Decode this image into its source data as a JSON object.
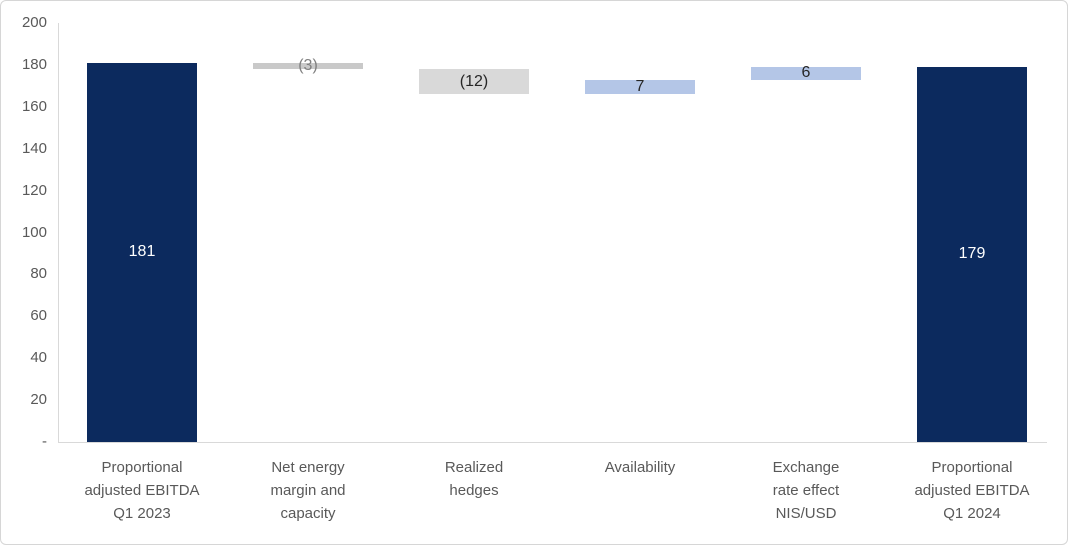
{
  "chart_data": {
    "type": "bar",
    "subtype": "waterfall",
    "title": "",
    "xlabel": "",
    "ylabel": "",
    "grid": false,
    "legend": false,
    "y_axis": {
      "min": 0,
      "max": 200,
      "tick_step": 20,
      "tick_labels": [
        "-",
        "20",
        "40",
        "60",
        "80",
        "100",
        "120",
        "140",
        "160",
        "180",
        "200"
      ]
    },
    "categories": [
      "Proportional adjusted EBITDA Q1 2023",
      "Net energy margin and capacity",
      "Realized hedges",
      "Availability",
      "Exchange rate effect NIS/USD",
      "Proportional adjusted EBITDA Q1 2024"
    ],
    "bars": [
      {
        "label_lines": [
          "Proportional",
          "adjusted EBITDA",
          "Q1 2023"
        ],
        "role": "total",
        "value": 181,
        "span_from": 0,
        "span_to": 181,
        "data_label": "181",
        "bar_color": "#0c2a5e",
        "label_color": "#ffffff"
      },
      {
        "label_lines": [
          "Net energy",
          "margin and",
          "capacity"
        ],
        "role": "decrease",
        "value": -3,
        "span_from": 178,
        "span_to": 181,
        "data_label": "(3)",
        "bar_color": "#c9c9c9",
        "label_color": "#808080"
      },
      {
        "label_lines": [
          "Realized",
          "hedges"
        ],
        "role": "decrease",
        "value": -12,
        "span_from": 166,
        "span_to": 178,
        "data_label": "(12)",
        "bar_color": "#d9d9d9",
        "label_color": "#262626"
      },
      {
        "label_lines": [
          "Availability"
        ],
        "role": "increase",
        "value": 7,
        "span_from": 166,
        "span_to": 173,
        "data_label": "7",
        "bar_color": "#b4c6e7",
        "label_color": "#262626"
      },
      {
        "label_lines": [
          "Exchange",
          "rate effect",
          "NIS/USD"
        ],
        "role": "increase",
        "value": 6,
        "span_from": 173,
        "span_to": 179,
        "data_label": "6",
        "bar_color": "#b4c6e7",
        "label_color": "#262626"
      },
      {
        "label_lines": [
          "Proportional",
          "adjusted EBITDA",
          "Q1 2024"
        ],
        "role": "total",
        "value": 179,
        "span_from": 0,
        "span_to": 179,
        "data_label": "179",
        "bar_color": "#0c2a5e",
        "label_color": "#ffffff"
      }
    ]
  },
  "colors": {
    "total_bar": "#0c2a5e",
    "decrease_bar": "#d9d9d9",
    "increase_bar": "#b4c6e7",
    "axis_line": "#d9d9d9",
    "axis_text": "#595959",
    "frame_border": "#d6d6d6"
  }
}
